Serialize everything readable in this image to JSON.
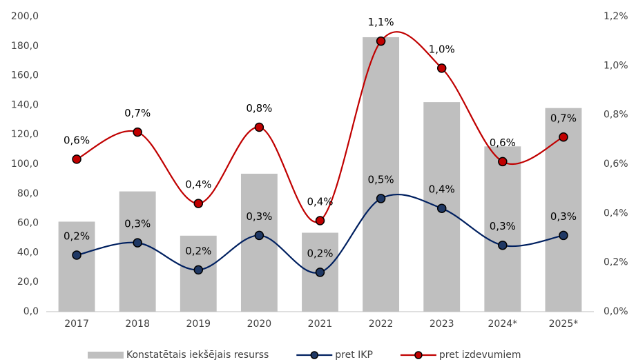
{
  "chart_data": {
    "type": "bar-line",
    "categories": [
      "2017",
      "2018",
      "2019",
      "2020",
      "2021",
      "2022",
      "2023",
      "2024*",
      "2025*"
    ],
    "series": [
      {
        "name": "Konstatētais iekšējais resurss",
        "type": "bar",
        "color": "#bfbfbf",
        "values": [
          61,
          81.5,
          51.5,
          93.5,
          53.5,
          186,
          142,
          112,
          138
        ]
      },
      {
        "name": "pret IKP",
        "type": "line",
        "axis": "y2",
        "color": "#002060",
        "marker_color": "#1f3864",
        "values": [
          0.23,
          0.28,
          0.17,
          0.31,
          0.16,
          0.46,
          0.42,
          0.27,
          0.31
        ],
        "value_labels": [
          "0,2%",
          "0,3%",
          "0,2%",
          "0,3%",
          "0,2%",
          "0,5%",
          "0,4%",
          "0,3%",
          "0,3%"
        ]
      },
      {
        "name": "pret izdevumiem",
        "type": "line",
        "axis": "y2",
        "color": "#c00000",
        "marker_color": "#c00000",
        "values": [
          0.62,
          0.73,
          0.44,
          0.75,
          0.37,
          1.1,
          0.99,
          0.61,
          0.71
        ],
        "value_labels": [
          "0,6%",
          "0,7%",
          "0,4%",
          "0,8%",
          "0,4%",
          "1,1%",
          "1,0%",
          "0,6%",
          "0,7%"
        ]
      }
    ],
    "ylim": [
      0,
      200
    ],
    "yticks": [
      {
        "value": 0,
        "label": "0,0"
      },
      {
        "value": 20,
        "label": "20,0"
      },
      {
        "value": 40,
        "label": "40,0"
      },
      {
        "value": 60,
        "label": "60,0"
      },
      {
        "value": 80,
        "label": "80,0"
      },
      {
        "value": 100,
        "label": "100,0"
      },
      {
        "value": 120,
        "label": "120,0"
      },
      {
        "value": 140,
        "label": "140,0"
      },
      {
        "value": 160,
        "label": "160,0"
      },
      {
        "value": 180,
        "label": "180,0"
      },
      {
        "value": 200,
        "label": "200,0"
      }
    ],
    "y2lim": [
      0,
      1.2
    ],
    "y2ticks": [
      {
        "value": 0,
        "label": "0,0%"
      },
      {
        "value": 0.2,
        "label": "0,2%"
      },
      {
        "value": 0.4,
        "label": "0,4%"
      },
      {
        "value": 0.6,
        "label": "0,6%"
      },
      {
        "value": 0.8,
        "label": "0,8%"
      },
      {
        "value": 1.0,
        "label": "1,0%"
      },
      {
        "value": 1.2,
        "label": "1,2%"
      }
    ],
    "smooth": true,
    "legend": "bottom"
  }
}
